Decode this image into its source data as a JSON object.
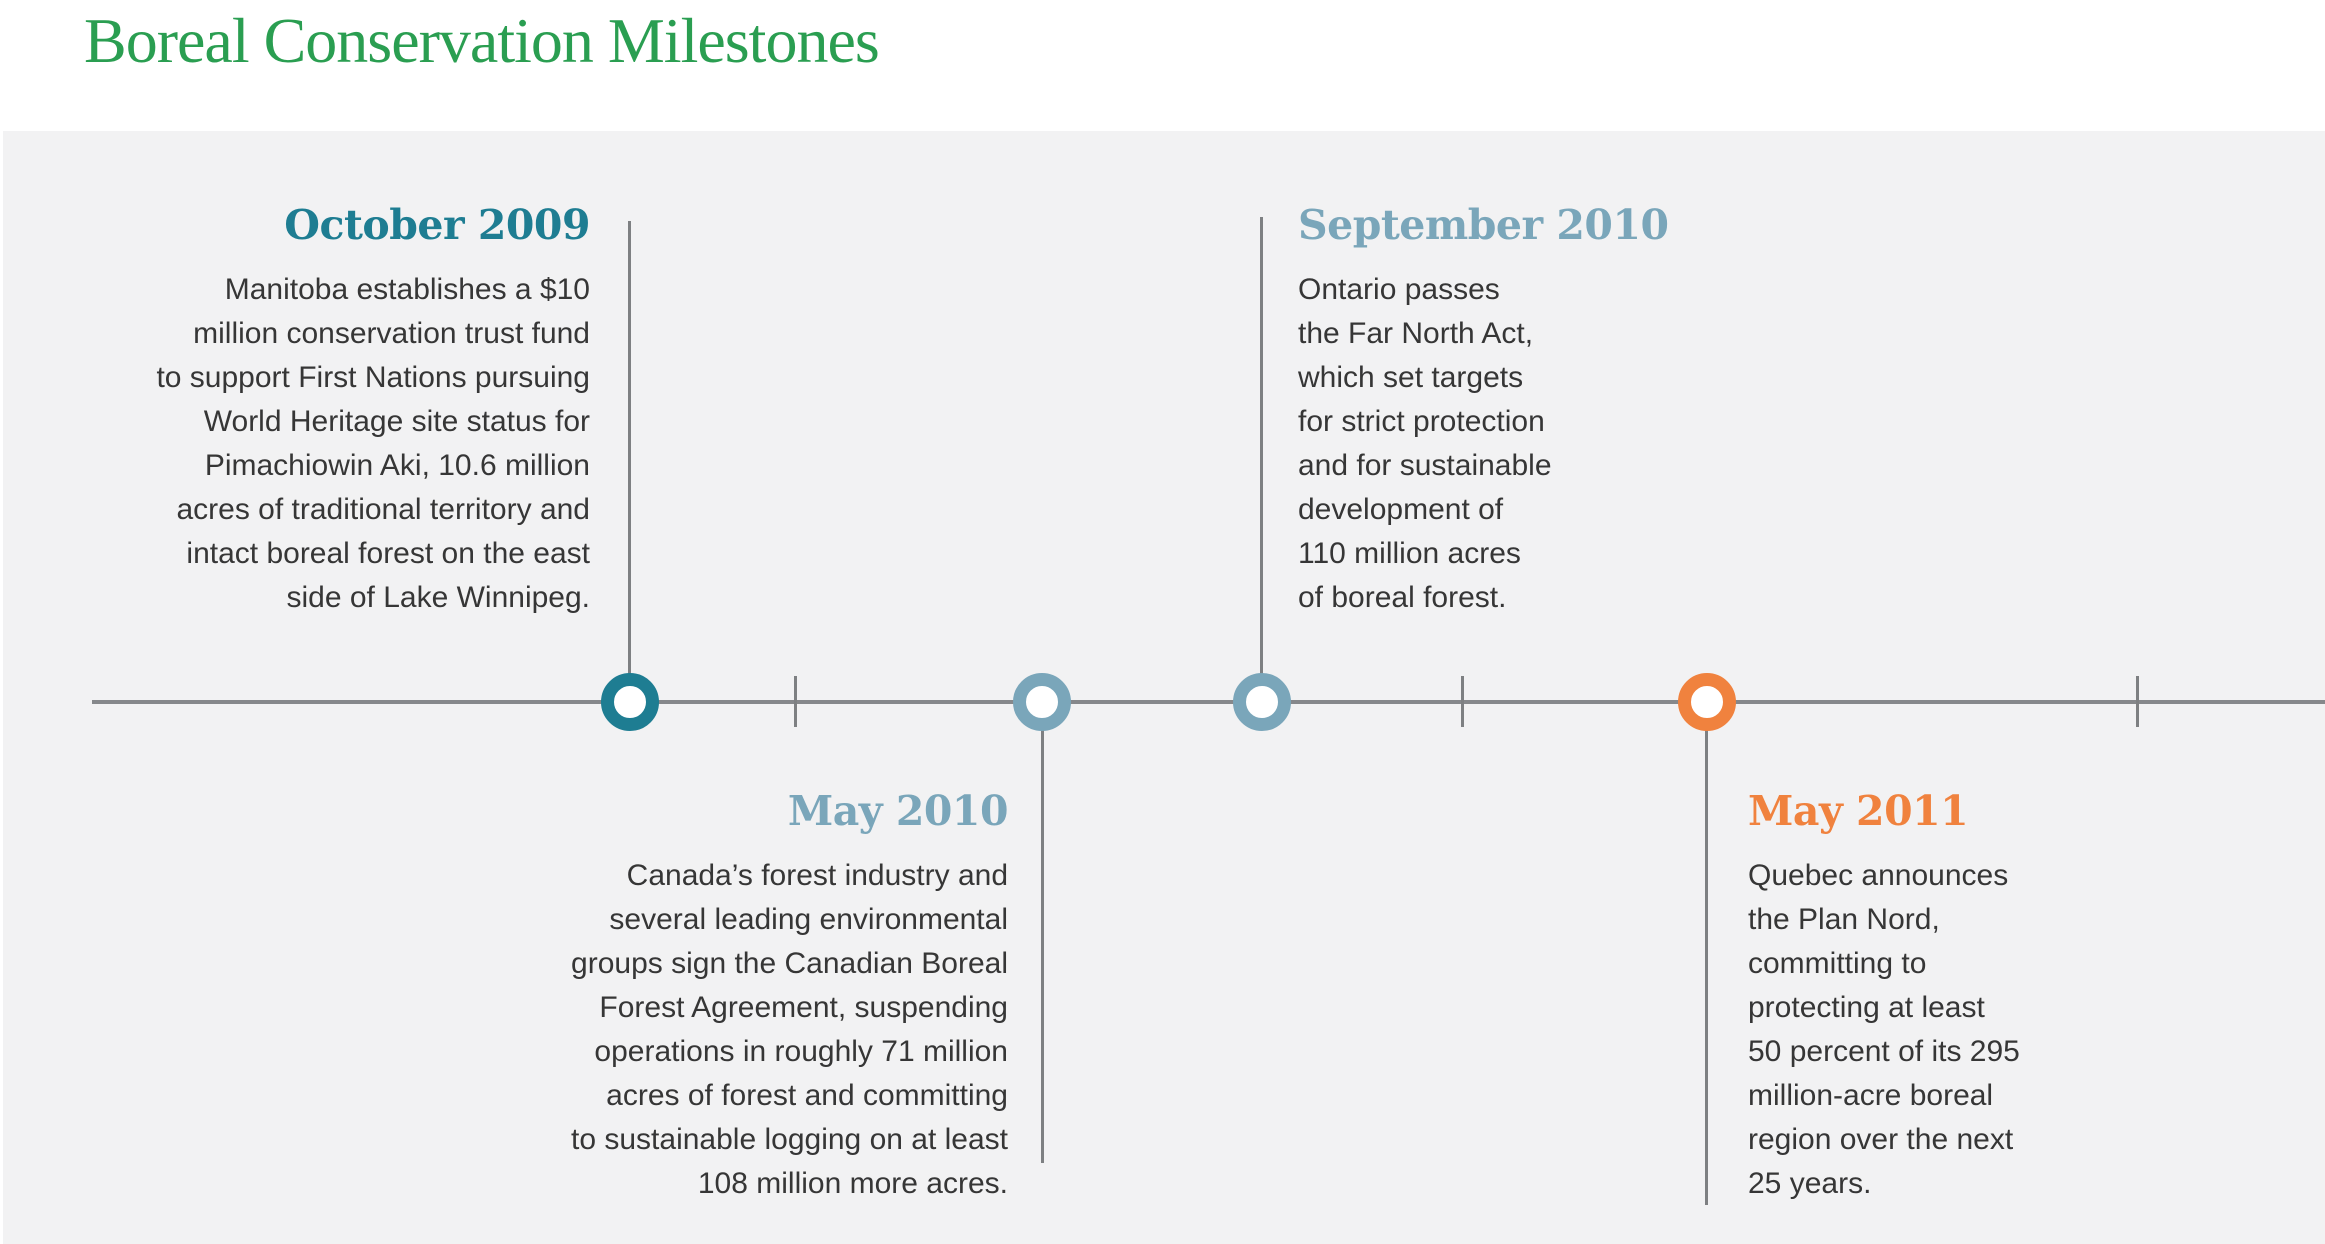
{
  "page": {
    "title": "Boreal Conservation Milestones",
    "title_color": "#2a9e51",
    "panel_background": "#f2f2f3"
  },
  "timeline": {
    "axis_color": "#86888b",
    "connector_color": "#7e8082",
    "milestones": [
      {
        "date": "October 2009",
        "position": "above-axis",
        "align": "right",
        "accent_color": "#1e7d92",
        "description_lines": [
          "Manitoba establishes a $10",
          "million conservation trust fund",
          "to support First Nations pursuing",
          "World Heritage site status for",
          "Pimachiowin Aki, 10.6 million",
          "acres of traditional territory and",
          "intact boreal forest on the east",
          "side of Lake Winnipeg."
        ]
      },
      {
        "date": "May 2010",
        "position": "below-axis",
        "align": "right",
        "accent_color": "#7aa6ba",
        "description_lines": [
          "Canada’s forest industry and",
          "several leading environmental",
          "groups sign the Canadian Boreal",
          "Forest Agreement, suspending",
          "operations in roughly 71 million",
          "acres of forest and committing",
          "to sustainable logging on at least",
          "108 million more acres."
        ]
      },
      {
        "date": "September 2010",
        "position": "above-axis",
        "align": "left",
        "accent_color": "#7aa6ba",
        "description_lines": [
          "Ontario passes",
          "the Far North Act,",
          "which set targets",
          "for strict protection",
          "and for sustainable",
          "development of",
          "110 million acres",
          "of boreal forest."
        ]
      },
      {
        "date": "May 2011",
        "position": "below-axis",
        "align": "left",
        "accent_color": "#f0823e",
        "description_lines": [
          "Quebec announces",
          "the Plan Nord,",
          "committing to",
          "protecting at least",
          "50 percent of its 295",
          "million-acre boreal",
          "region over the next",
          "25 years."
        ]
      }
    ]
  }
}
